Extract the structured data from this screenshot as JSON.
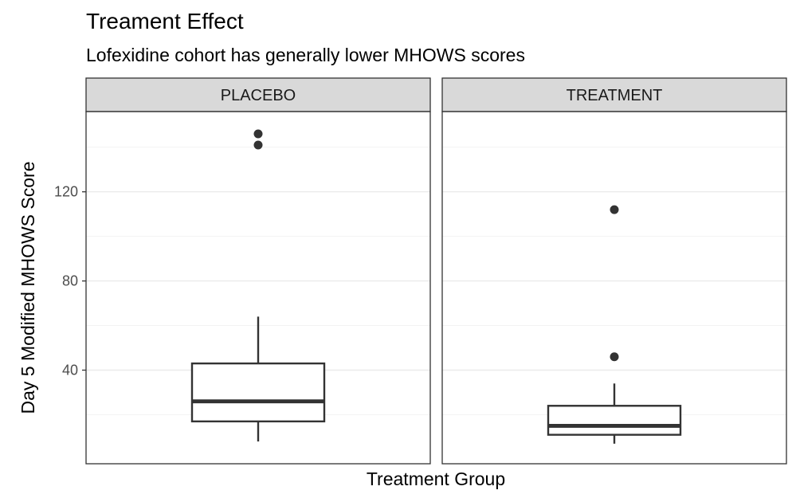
{
  "chart_data": {
    "type": "boxplot",
    "title": "Treament Effect",
    "subtitle": "Lofexidine cohort has generally lower MHOWS scores",
    "xlabel": "Treatment Group",
    "ylabel": "Day 5 Modified MHOWS Score",
    "ylim": [
      -2,
      156
    ],
    "yticks": [
      40,
      80,
      120
    ],
    "grid": true,
    "colors": {
      "strip_fill": "#d9d9d9",
      "panel_border": "#333333",
      "grid_major": "#ebebeb",
      "grid_minor": "#f3f3f3",
      "box_line": "#333333",
      "point": "#333333"
    },
    "panels": [
      {
        "label": "PLACEBO",
        "whisker_low": 8,
        "q1": 17,
        "median": 26,
        "q3": 43,
        "whisker_high": 64,
        "outliers": [
          146,
          141
        ]
      },
      {
        "label": "TREATMENT",
        "whisker_low": 7,
        "q1": 11,
        "median": 15,
        "q3": 24,
        "whisker_high": 34,
        "outliers": [
          112,
          46
        ]
      }
    ]
  }
}
